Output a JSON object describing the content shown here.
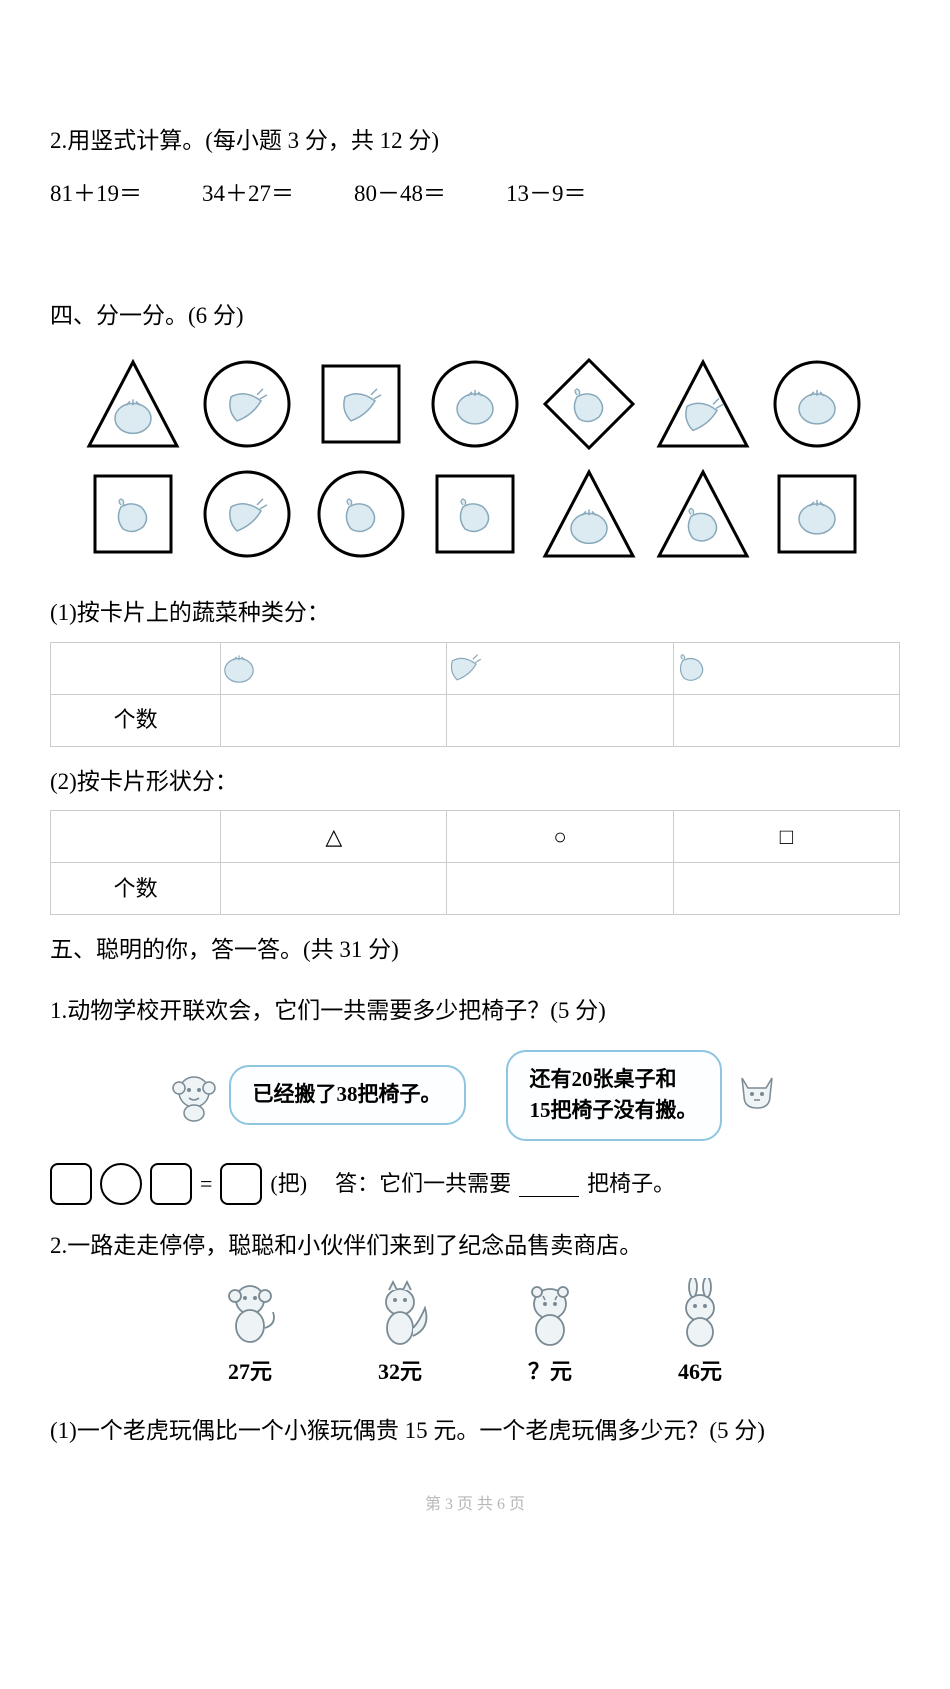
{
  "q2": {
    "title": "2.用竖式计算。(每小题 3 分，共 12 分)",
    "equations": [
      "81＋19＝",
      "34＋27＝",
      "80－48＝",
      "13－9＝"
    ]
  },
  "q4": {
    "title": "四、分一分。(6 分)",
    "shapes_row1": [
      {
        "frame": "triangle",
        "veg": "tomato"
      },
      {
        "frame": "circle",
        "veg": "carrot"
      },
      {
        "frame": "square",
        "veg": "carrot"
      },
      {
        "frame": "circle",
        "veg": "tomato"
      },
      {
        "frame": "diamond",
        "veg": "eggplant"
      },
      {
        "frame": "triangle",
        "veg": "carrot"
      },
      {
        "frame": "circle",
        "veg": "tomato"
      }
    ],
    "shapes_row2": [
      {
        "frame": "square",
        "veg": "eggplant"
      },
      {
        "frame": "circle",
        "veg": "carrot"
      },
      {
        "frame": "circle",
        "veg": "eggplant"
      },
      {
        "frame": "square",
        "veg": "eggplant"
      },
      {
        "frame": "triangle",
        "veg": "tomato"
      },
      {
        "frame": "triangle",
        "veg": "eggplant"
      },
      {
        "frame": "square",
        "veg": "tomato"
      }
    ],
    "sub1": "(1)按卡片上的蔬菜种类分：",
    "table1_headers": [
      "tomato",
      "carrot",
      "eggplant"
    ],
    "count_label": "个数",
    "sub2": "(2)按卡片形状分：",
    "table2_headers": [
      "△",
      "○",
      "□"
    ]
  },
  "q5": {
    "title": "五、聪明的你，答一答。(共 31 分)",
    "p1": {
      "text": "1.动物学校开联欢会，它们一共需要多少把椅子？(5 分)",
      "bubble_left": "已经搬了38把椅子。",
      "bubble_right_l1": "还有20张桌子和",
      "bubble_right_l2": "15把椅子没有搬。",
      "answer_unit": "(把)",
      "answer_prefix": "答：它们一共需要",
      "answer_suffix": "把椅子。"
    },
    "p2": {
      "text": "2.一路走走停停，聪聪和小伙伴们来到了纪念品售卖商店。",
      "toys": [
        {
          "icon": "monkey",
          "price": "27元"
        },
        {
          "icon": "squirrel",
          "price": "32元"
        },
        {
          "icon": "tiger",
          "price": "？元"
        },
        {
          "icon": "rabbit",
          "price": "46元"
        }
      ],
      "q1": "(1)一个老虎玩偶比一个小猴玩偶贵 15 元。一个老虎玩偶多少元？(5 分)"
    }
  },
  "pager": "第 3 页 共 6 页",
  "colors": {
    "veg_fill": "#dceaf2",
    "veg_stroke": "#88a9bb",
    "frame_stroke": "#000000",
    "bubble_border": "#8ec5e0",
    "animal_stroke": "#7a8a94",
    "animal_fill": "#eef3f6"
  }
}
